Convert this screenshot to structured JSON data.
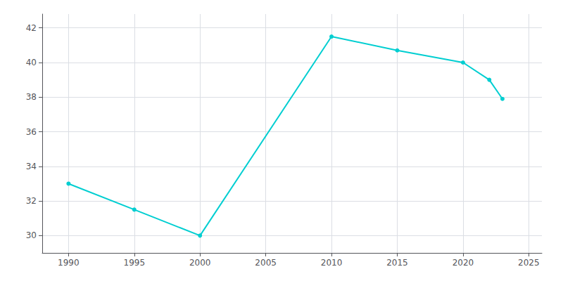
{
  "chart_data": {
    "type": "line",
    "x": [
      1990,
      1995,
      2000,
      2010,
      2015,
      2020,
      2022,
      2023
    ],
    "values": [
      33.0,
      31.5,
      30.0,
      41.5,
      40.7,
      40.0,
      39.0,
      37.9
    ],
    "color": "#00CED1",
    "marker": "circle",
    "xlim": [
      1988,
      2026
    ],
    "xticks": [
      1990,
      1995,
      2000,
      2005,
      2010,
      2015,
      2020,
      2025
    ],
    "ylim": [
      29.0,
      42.8
    ],
    "yticks": [
      30,
      32,
      34,
      36,
      38,
      40,
      42
    ],
    "grid": true
  }
}
